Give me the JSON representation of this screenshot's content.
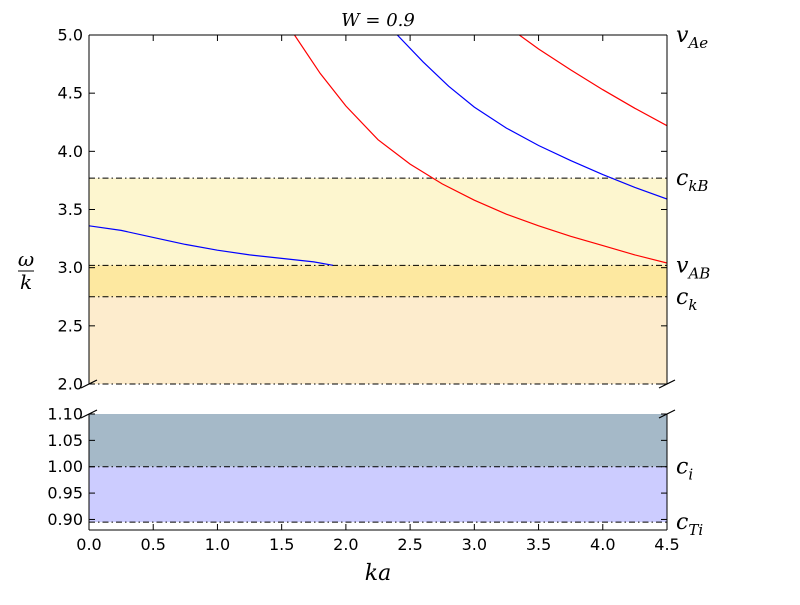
{
  "colors": {
    "background": "#ffffff",
    "axis": "#000000",
    "reference_line": "#000000",
    "red_series": "#ff0000",
    "blue_series": "#0000ff",
    "band_yellow_light": "#fdf6cf",
    "band_yellow_mid": "#fde8a0",
    "band_orange_light": "#fdeccd",
    "band_slate": "#a5b9c8",
    "band_lavender": "#ccccff"
  },
  "chart_data": {
    "type": "line",
    "title": "W = 0.9",
    "xlabel": "ka",
    "ylabel": {
      "numerator": "ω",
      "denominator": "k"
    },
    "xlim": [
      0.0,
      4.5
    ],
    "broken_axis": true,
    "grid": false,
    "upper_ylim": [
      2.0,
      5.0
    ],
    "lower_ylim": [
      0.88,
      1.1
    ],
    "x_ticks": [
      "0.0",
      "0.5",
      "1.0",
      "1.5",
      "2.0",
      "2.5",
      "3.0",
      "3.5",
      "4.0",
      "4.5"
    ],
    "upper_y_ticks": [
      "2.0",
      "2.5",
      "3.0",
      "3.5",
      "4.0",
      "4.5",
      "5.0"
    ],
    "lower_y_ticks": [
      "0.90",
      "0.95",
      "1.00",
      "1.05",
      "1.10"
    ],
    "reference_lines": [
      {
        "name": "v_Ae",
        "y": 5.0,
        "panel": "upper",
        "label_main": "v",
        "label_sub": "Ae"
      },
      {
        "name": "c_kB",
        "y": 3.77,
        "panel": "upper",
        "label_main": "c",
        "label_sub": "kB"
      },
      {
        "name": "v_AB",
        "y": 3.02,
        "panel": "upper",
        "label_main": "v",
        "label_sub": "AB"
      },
      {
        "name": "c_k",
        "y": 2.75,
        "panel": "upper",
        "label_main": "c",
        "label_sub": "k"
      },
      {
        "name": "bottom_upper",
        "y": 2.0,
        "panel": "upper",
        "label_main": "",
        "label_sub": ""
      },
      {
        "name": "c_i",
        "y": 1.0,
        "panel": "lower",
        "label_main": "c",
        "label_sub": "i"
      },
      {
        "name": "c_Ti",
        "y": 0.895,
        "panel": "lower",
        "label_main": "c",
        "label_sub": "Ti"
      }
    ],
    "bands": [
      {
        "name": "band-ckB-vAB",
        "y0": 3.02,
        "y1": 3.77,
        "panel": "upper",
        "color": "#fdf6cf"
      },
      {
        "name": "band-vAB-ck",
        "y0": 2.75,
        "y1": 3.02,
        "panel": "upper",
        "color": "#fde8a0"
      },
      {
        "name": "band-ck-bottom",
        "y0": 2.0,
        "y1": 2.75,
        "panel": "upper",
        "color": "#fdeccd"
      },
      {
        "name": "band-lower-top",
        "y0": 1.0,
        "y1": 1.1,
        "panel": "lower",
        "color": "#a5b9c8"
      },
      {
        "name": "band-ci-cTi",
        "y0": 0.895,
        "y1": 1.0,
        "panel": "lower",
        "color": "#ccccff"
      }
    ],
    "series": [
      {
        "color": "#0000ff",
        "x": [
          0.0,
          0.25,
          0.5,
          0.75,
          1.0,
          1.25,
          1.5,
          1.75,
          1.9
        ],
        "y": [
          3.36,
          3.32,
          3.26,
          3.2,
          3.15,
          3.11,
          3.08,
          3.05,
          3.02
        ]
      },
      {
        "color": "#ff0000",
        "x": [
          1.6,
          1.8,
          2.0,
          2.25,
          2.5,
          2.75,
          3.0,
          3.25,
          3.5,
          3.75,
          4.0,
          4.25,
          4.5
        ],
        "y": [
          5.0,
          4.67,
          4.39,
          4.1,
          3.89,
          3.72,
          3.58,
          3.46,
          3.36,
          3.27,
          3.19,
          3.11,
          3.04
        ]
      },
      {
        "color": "#0000ff",
        "x": [
          2.4,
          2.6,
          2.8,
          3.0,
          3.25,
          3.5,
          3.75,
          4.0,
          4.25,
          4.5
        ],
        "y": [
          5.0,
          4.77,
          4.56,
          4.38,
          4.2,
          4.05,
          3.92,
          3.8,
          3.69,
          3.59
        ]
      },
      {
        "color": "#ff0000",
        "x": [
          3.35,
          3.5,
          3.75,
          4.0,
          4.25,
          4.5
        ],
        "y": [
          5.0,
          4.88,
          4.7,
          4.53,
          4.37,
          4.22
        ]
      }
    ]
  }
}
